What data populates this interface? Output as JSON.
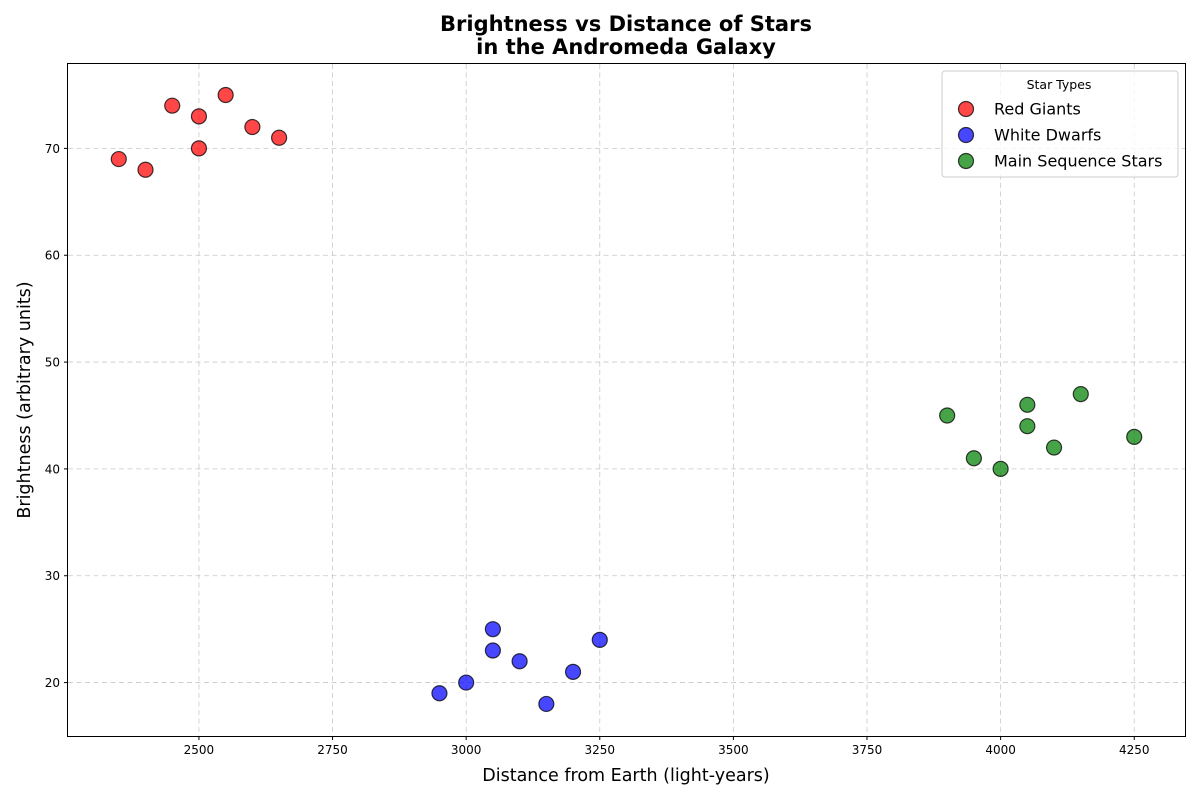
{
  "chart_data": {
    "type": "scatter",
    "title_lines": [
      "Brightness vs Distance of Stars",
      "in the Andromeda Galaxy"
    ],
    "xlabel": "Distance from Earth (light-years)",
    "ylabel": "Brightness (arbitrary units)",
    "xlim": [
      2255,
      4345
    ],
    "ylim": [
      15,
      77.9
    ],
    "x_ticks": [
      2500,
      2750,
      3000,
      3250,
      3500,
      3750,
      4000,
      4250
    ],
    "y_ticks": [
      20,
      30,
      40,
      50,
      60,
      70
    ],
    "grid": true,
    "legend": {
      "title": "Star Types",
      "placement": "top-right"
    },
    "series": [
      {
        "name": "Red Giants",
        "color": "#ff0000",
        "x": [
          2350,
          2400,
          2450,
          2500,
          2500,
          2550,
          2600,
          2650
        ],
        "y": [
          69,
          68,
          74,
          73,
          70,
          75,
          72,
          71
        ]
      },
      {
        "name": "White Dwarfs",
        "color": "#0000ff",
        "x": [
          2950,
          3000,
          3050,
          3050,
          3100,
          3150,
          3200,
          3250
        ],
        "y": [
          19,
          20,
          25,
          23,
          22,
          18,
          21,
          24
        ]
      },
      {
        "name": "Main Sequence Stars",
        "color": "#008000",
        "x": [
          3900,
          3950,
          4000,
          4050,
          4050,
          4100,
          4150,
          4250
        ],
        "y": [
          45,
          41,
          40,
          46,
          44,
          42,
          47,
          43
        ]
      }
    ]
  }
}
